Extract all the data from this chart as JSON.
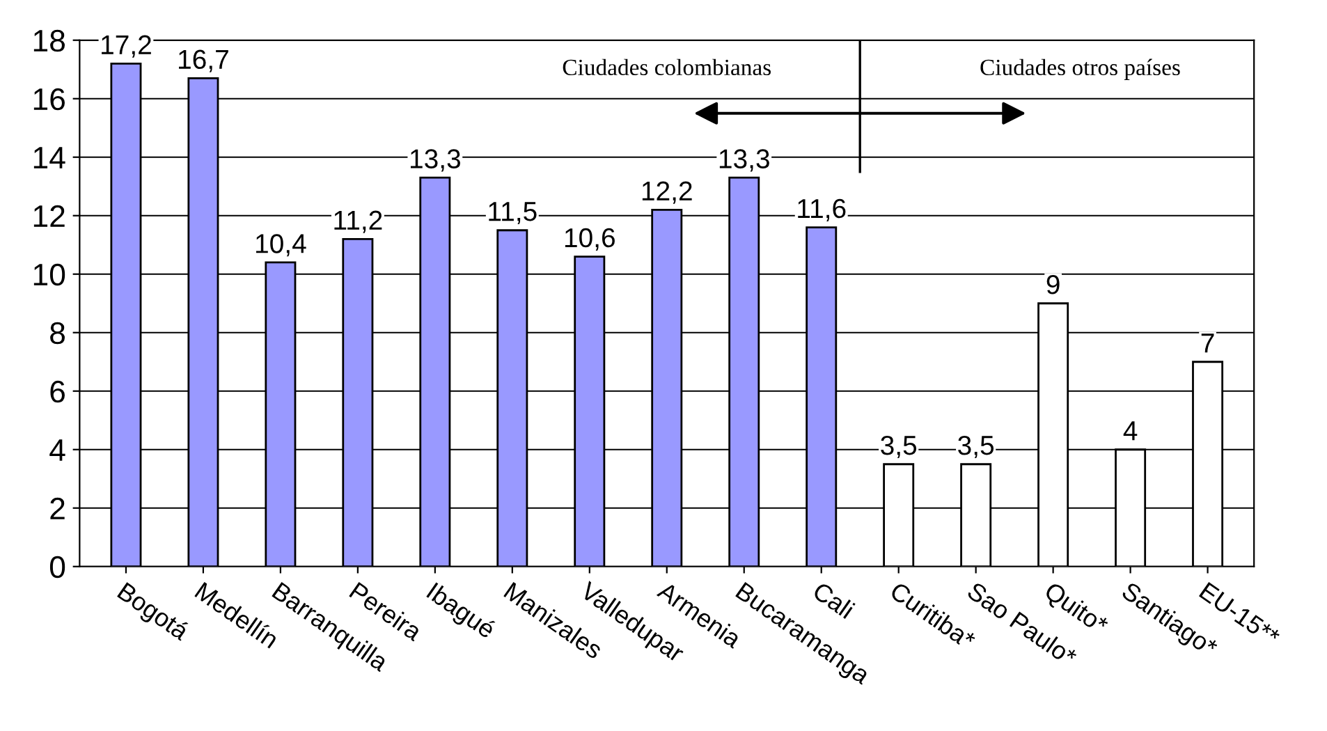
{
  "chart_data": {
    "type": "bar",
    "categories": [
      "Bogotá",
      "Medellín",
      "Barranquilla",
      "Pereira",
      "Ibagué",
      "Manizales",
      "Valledupar",
      "Armenia",
      "Bucaramanga",
      "Cali",
      "Curitiba*",
      "Sao Paulo*",
      "Quito*",
      "Santiago*",
      "EU-15**"
    ],
    "values": [
      17.2,
      16.7,
      10.4,
      11.2,
      13.3,
      11.5,
      10.6,
      12.2,
      13.3,
      11.6,
      3.5,
      3.5,
      9,
      4,
      7
    ],
    "value_labels": [
      "17,2",
      "16,7",
      "10,4",
      "11,2",
      "13,3",
      "11,5",
      "10,6",
      "12,2",
      "13,3",
      "11,6",
      "3,5",
      "3,5",
      "9",
      "4",
      "7"
    ],
    "colors": [
      "#9999ff",
      "#9999ff",
      "#9999ff",
      "#9999ff",
      "#9999ff",
      "#9999ff",
      "#9999ff",
      "#9999ff",
      "#9999ff",
      "#9999ff",
      "#ffffff",
      "#ffffff",
      "#ffffff",
      "#ffffff",
      "#ffffff"
    ],
    "ylim": [
      0,
      18
    ],
    "yticks": [
      0,
      2,
      4,
      6,
      8,
      10,
      12,
      14,
      16,
      18
    ],
    "grid": "y",
    "annotations": [
      "Ciudades colombianas",
      "Ciudades otros países"
    ]
  }
}
